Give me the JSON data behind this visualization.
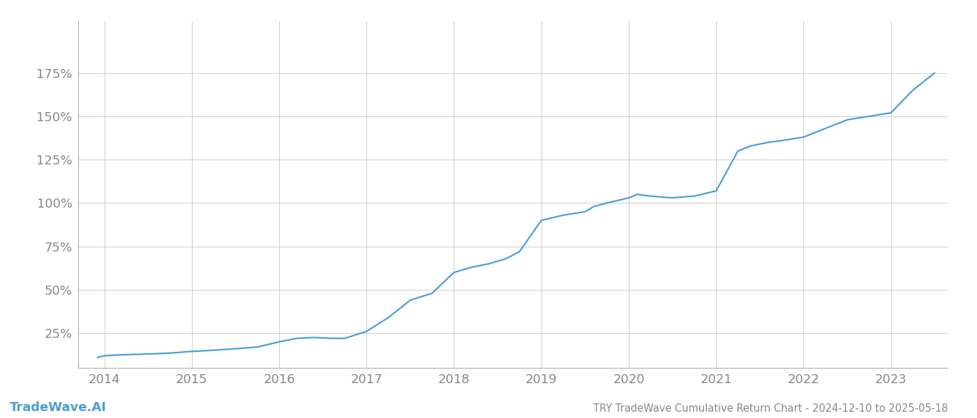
{
  "title": "TRY TradeWave Cumulative Return Chart - 2024-12-10 to 2025-05-18",
  "watermark": "TradeWave.AI",
  "line_color": "#4a9fd4",
  "background_color": "#ffffff",
  "grid_color": "#cccccc",
  "tick_color": "#888888",
  "watermark_color": "#4a9fd4",
  "x_years": [
    2013.92,
    2014.0,
    2014.2,
    2014.5,
    2014.75,
    2015.0,
    2015.2,
    2015.5,
    2015.75,
    2016.0,
    2016.2,
    2016.4,
    2016.6,
    2016.75,
    2017.0,
    2017.25,
    2017.5,
    2017.75,
    2018.0,
    2018.2,
    2018.4,
    2018.6,
    2018.75,
    2019.0,
    2019.25,
    2019.5,
    2019.6,
    2019.75,
    2020.0,
    2020.1,
    2020.25,
    2020.5,
    2020.75,
    2021.0,
    2021.25,
    2021.4,
    2021.6,
    2021.75,
    2022.0,
    2022.25,
    2022.5,
    2022.75,
    2023.0,
    2023.25,
    2023.5
  ],
  "y_values": [
    11,
    12,
    12.5,
    13,
    13.5,
    14.5,
    15,
    16,
    17,
    20,
    22,
    22.5,
    22,
    22,
    26,
    34,
    44,
    48,
    60,
    63,
    65,
    68,
    72,
    90,
    93,
    95,
    98,
    100,
    103,
    105,
    104,
    103,
    104,
    107,
    130,
    133,
    135,
    136,
    138,
    143,
    148,
    150,
    152,
    165,
    175
  ],
  "xlim": [
    2013.7,
    2023.65
  ],
  "ylim": [
    5,
    205
  ],
  "xticks": [
    2014,
    2015,
    2016,
    2017,
    2018,
    2019,
    2020,
    2021,
    2022,
    2023
  ],
  "yticks": [
    25,
    50,
    75,
    100,
    125,
    150,
    175
  ],
  "ytick_labels": [
    "25%",
    "50%",
    "75%",
    "100%",
    "125%",
    "150%",
    "175%"
  ],
  "line_width": 1.6,
  "title_fontsize": 10.5,
  "tick_fontsize": 13,
  "watermark_fontsize": 13
}
